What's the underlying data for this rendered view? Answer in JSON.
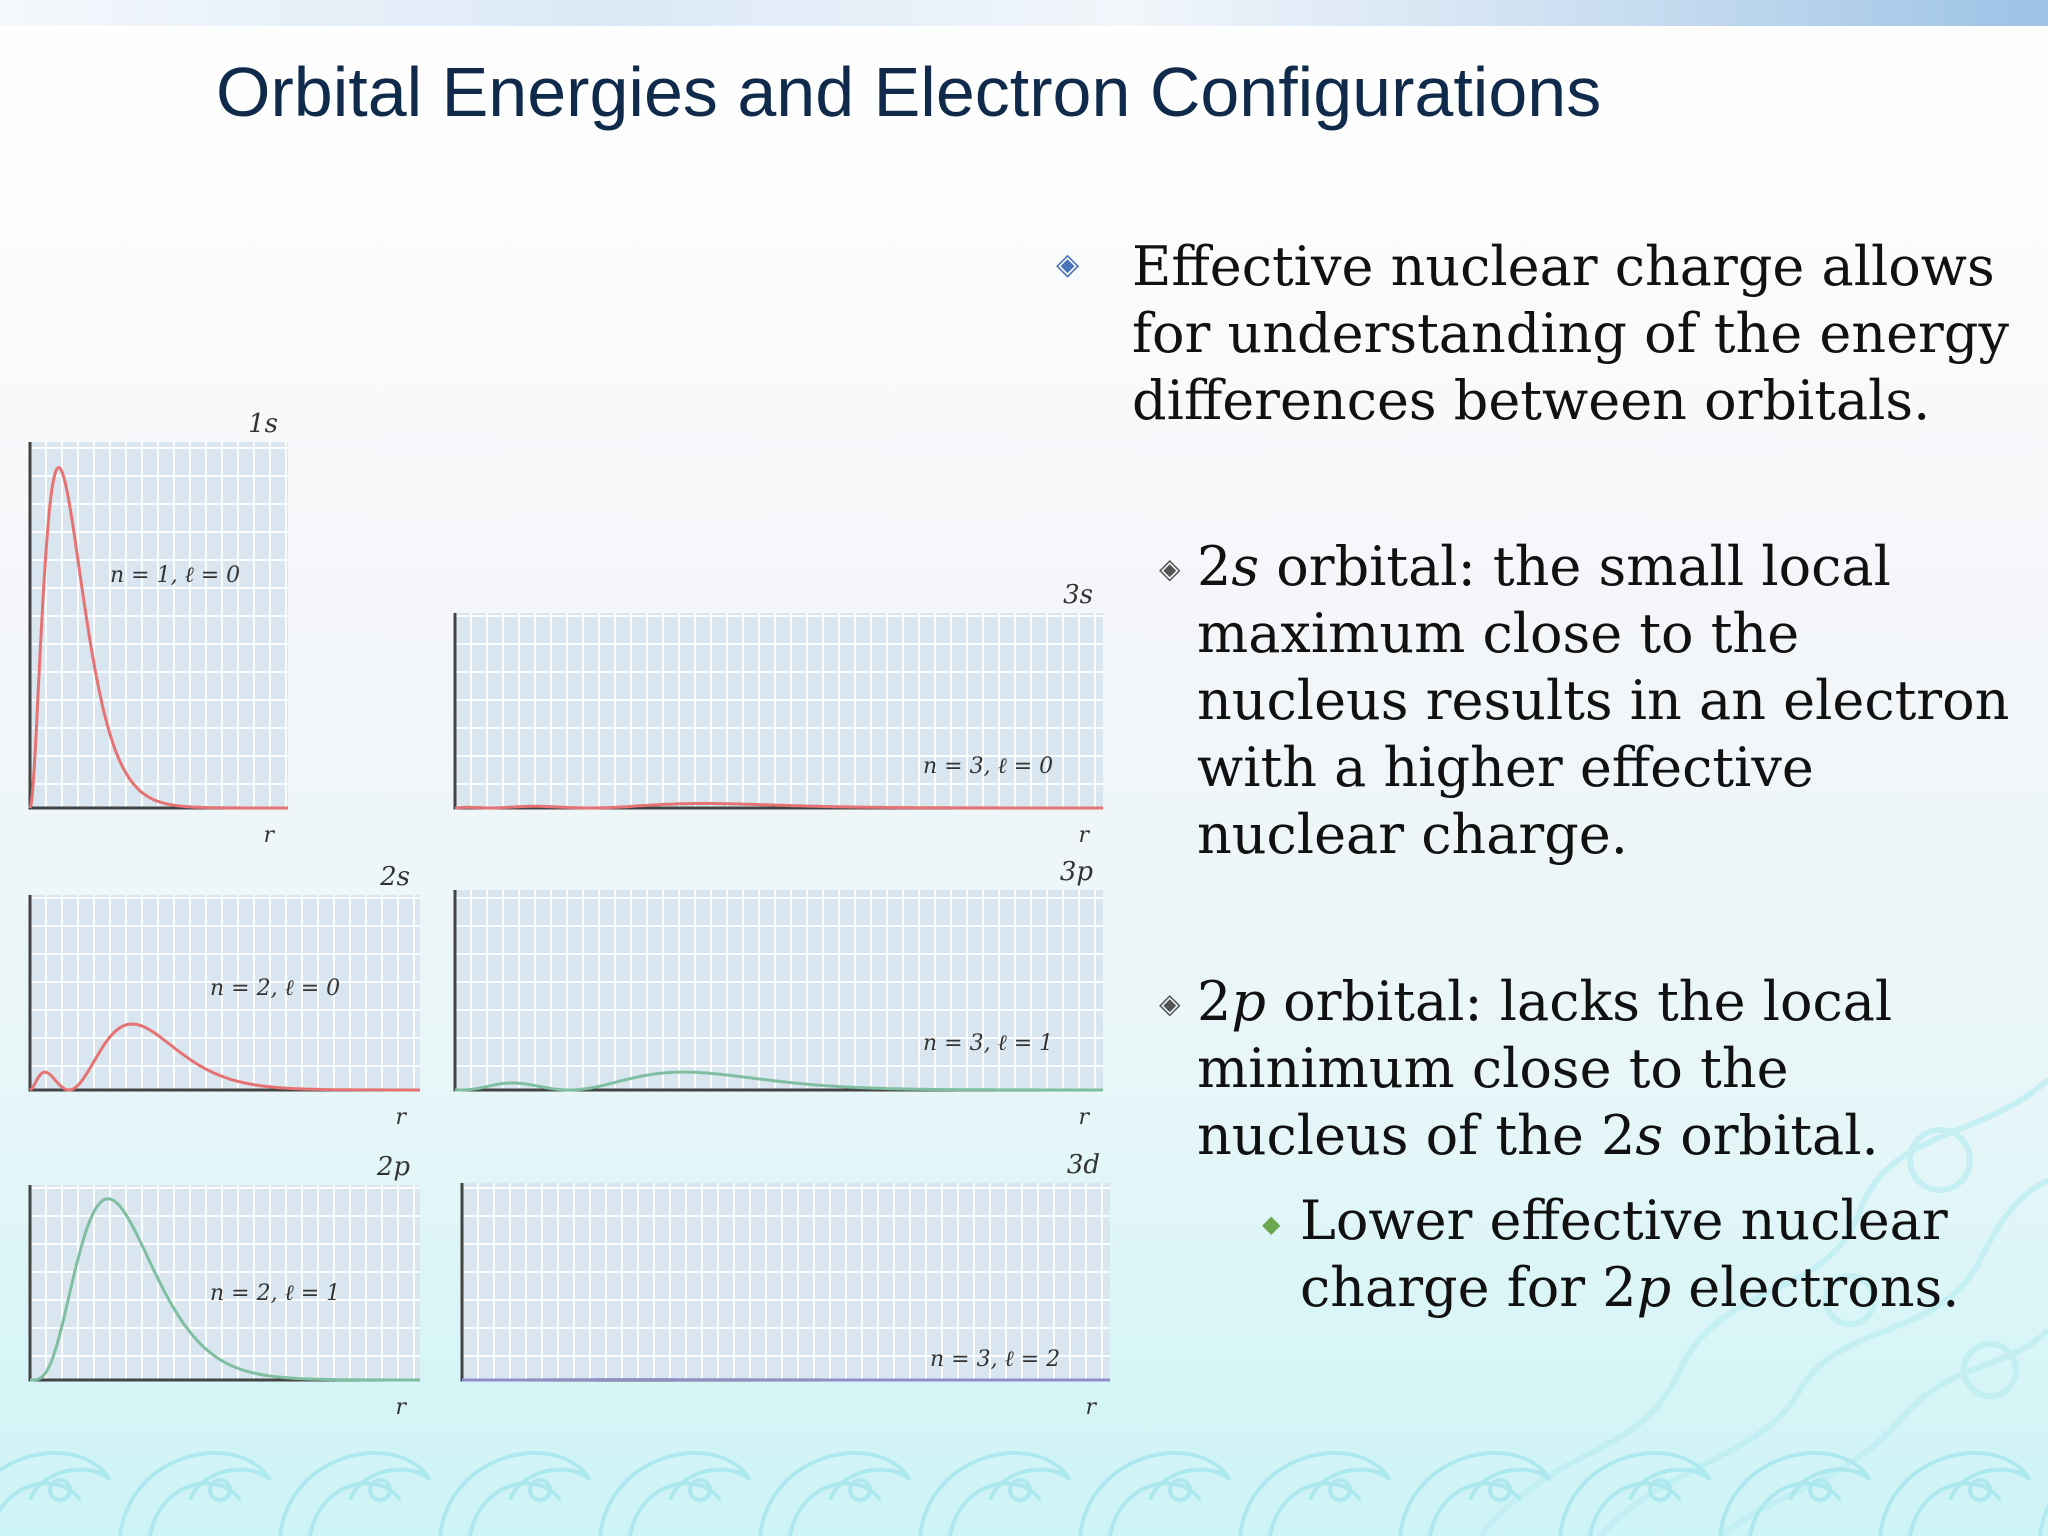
{
  "title": "Orbital Energies and Electron Configurations",
  "bullets": [
    {
      "level": 1,
      "text": "Effective nuclear charge allows for understanding of the energy differences between orbitals."
    },
    {
      "level": 2,
      "parts": [
        {
          "t": "2"
        },
        {
          "t": "s",
          "i": true
        },
        {
          "t": " orbital: the small local maximum close to the nucleus results in an electron with a higher effective nuclear charge."
        }
      ]
    },
    {
      "level": 2,
      "parts": [
        {
          "t": "2"
        },
        {
          "t": "p",
          "i": true
        },
        {
          "t": " orbital: lacks the local minimum close to the nucleus of the 2"
        },
        {
          "t": "s",
          "i": true
        },
        {
          "t": " orbital."
        }
      ]
    },
    {
      "level": 3,
      "parts": [
        {
          "t": "Lower effective nuclear charge for 2"
        },
        {
          "t": "p",
          "i": true
        },
        {
          "t": " electrons."
        }
      ]
    }
  ],
  "icons": {
    "bullet_level1": "diamond-outline-icon",
    "bullet_level2": "diamond-outline-icon",
    "bullet_level3": "diamond-filled-icon"
  },
  "colors": {
    "title": "#0f2a4a",
    "curve_s": "#e57373",
    "curve_p": "#7fbfa0",
    "curve_d": "#9090c8",
    "grid_bg": "#d9e6ef"
  },
  "plots": [
    {
      "name": "1s",
      "label": "n = 1, ℓ = 0",
      "axis": "r",
      "color_key": "curve_s"
    },
    {
      "name": "2s",
      "label": "n = 2, ℓ = 0",
      "axis": "r",
      "color_key": "curve_s"
    },
    {
      "name": "2p",
      "label": "n = 2, ℓ = 1",
      "axis": "r",
      "color_key": "curve_p"
    },
    {
      "name": "3s",
      "label": "n = 3, ℓ = 0",
      "axis": "r",
      "color_key": "curve_s"
    },
    {
      "name": "3p",
      "label": "n = 3, ℓ = 1",
      "axis": "r",
      "color_key": "curve_p"
    },
    {
      "name": "3d",
      "label": "n = 3, ℓ = 2",
      "axis": "r",
      "color_key": "curve_d"
    }
  ]
}
